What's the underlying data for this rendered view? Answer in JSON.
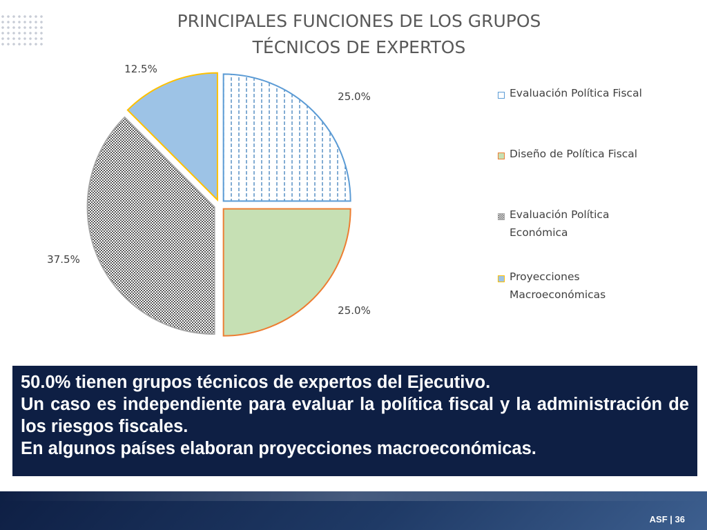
{
  "slide": {
    "title_line1": "PRINCIPALES FUNCIONES DE LOS GRUPOS",
    "title_line2": "TÉCNICOS DE EXPERTOS",
    "footer": "ASF | 36"
  },
  "callout": {
    "line1": "50.0% tienen grupos técnicos de expertos del Ejecutivo.",
    "line2": "Un caso es independiente para evaluar la política fiscal y la administración de los riesgos fiscales.",
    "line3": "En algunos países elaboran proyecciones macroeconómicas."
  },
  "chart_data": {
    "type": "pie",
    "title": "PRINCIPALES FUNCIONES DE LOS GRUPOS TÉCNICOS DE EXPERTOS",
    "legend_position": "right",
    "slices": [
      {
        "label": "Evaluación Política Fiscal",
        "value": 25.0,
        "label_text": "25.0%",
        "fill": "#ffffff",
        "stroke": "#5b9bd5",
        "pattern": "dashed-vertical"
      },
      {
        "label": "Diseño de Política Fiscal",
        "value": 25.0,
        "label_text": "25.0%",
        "fill": "#c6e0b4",
        "stroke": "#ed7d31",
        "pattern": "solid"
      },
      {
        "label": "Evaluación Política Económica",
        "value": 37.5,
        "label_text": "37.5%",
        "fill": "#ffffff",
        "stroke": "#a5a5a5",
        "pattern": "checker"
      },
      {
        "label": "Proyecciones Macroeconómicas",
        "value": 12.5,
        "label_text": "12.5%",
        "fill": "#9dc3e6",
        "stroke": "#ffc000",
        "pattern": "solid"
      }
    ]
  },
  "colors": {
    "callout_background": "#0e1f44",
    "title_text": "#595959"
  }
}
